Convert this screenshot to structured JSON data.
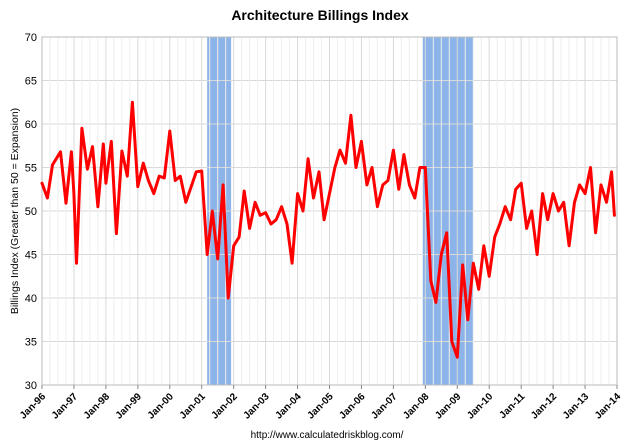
{
  "chart_data": {
    "type": "line",
    "title": "Architecture Billings Index",
    "ylabel": "Billings Index (Greater than 50 = Expansion)",
    "xlabel": "",
    "source": "http://www.calculatedriskblog.com/",
    "ylim": [
      30,
      70
    ],
    "yticks": [
      30,
      35,
      40,
      45,
      50,
      55,
      60,
      65,
      70
    ],
    "xlim": [
      1996.0,
      2014.0
    ],
    "xtick_labels": [
      "Jan-96",
      "Jan-97",
      "Jan-98",
      "Jan-99",
      "Jan-00",
      "Jan-01",
      "Jan-02",
      "Jan-03",
      "Jan-04",
      "Jan-05",
      "Jan-06",
      "Jan-07",
      "Jan-08",
      "Jan-09",
      "Jan-10",
      "Jan-11",
      "Jan-12",
      "Jan-13",
      "Jan-14"
    ],
    "grid": true,
    "recessions": [
      [
        2001.17,
        2001.92
      ],
      [
        2007.92,
        2009.5
      ]
    ],
    "colors": {
      "line": "#ff0000",
      "recession": "#8db4e8",
      "grid": "#d9d9d9"
    },
    "series": [
      {
        "x": [
          1996.0,
          1996.17,
          1996.33,
          1996.58,
          1996.75,
          1996.92,
          1997.0,
          1997.08,
          1997.25,
          1997.42,
          1997.58,
          1997.75,
          1997.92,
          1998.0,
          1998.17,
          1998.33,
          1998.5,
          1998.67,
          1998.83,
          1999.0,
          1999.17,
          1999.33,
          1999.5,
          1999.67,
          1999.83,
          2000.0,
          2000.17,
          2000.33,
          2000.5,
          2000.67,
          2000.83,
          2001.0,
          2001.17,
          2001.33,
          2001.5,
          2001.67,
          2001.83,
          2002.0,
          2002.17,
          2002.33,
          2002.5,
          2002.67,
          2002.83,
          2003.0,
          2003.17,
          2003.33,
          2003.5,
          2003.67,
          2003.83,
          2004.0,
          2004.17,
          2004.33,
          2004.5,
          2004.67,
          2004.83,
          2005.0,
          2005.17,
          2005.33,
          2005.5,
          2005.67,
          2005.83,
          2006.0,
          2006.17,
          2006.33,
          2006.5,
          2006.67,
          2006.83,
          2007.0,
          2007.17,
          2007.33,
          2007.5,
          2007.67,
          2007.83,
          2008.0,
          2008.17,
          2008.33,
          2008.5,
          2008.67,
          2008.83,
          2009.0,
          2009.17,
          2009.33,
          2009.5,
          2009.67,
          2009.83,
          2010.0,
          2010.17,
          2010.33,
          2010.5,
          2010.67,
          2010.83,
          2011.0,
          2011.17,
          2011.33,
          2011.5,
          2011.67,
          2011.83,
          2012.0,
          2012.17,
          2012.33,
          2012.5,
          2012.67,
          2012.83,
          2013.0,
          2013.17,
          2013.33,
          2013.5,
          2013.67,
          2013.83,
          2013.92
        ],
        "y": [
          53.2,
          51.5,
          55.3,
          56.8,
          50.9,
          56.8,
          52.0,
          44.0,
          59.5,
          54.8,
          57.4,
          50.5,
          57.7,
          53.2,
          58.0,
          47.4,
          56.9,
          54.0,
          62.5,
          52.8,
          55.5,
          53.5,
          52.0,
          54.0,
          53.8,
          59.2,
          53.5,
          54.0,
          51.0,
          52.8,
          54.5,
          54.6,
          45.0,
          50.0,
          44.5,
          53.0,
          40.0,
          46.0,
          47.0,
          52.3,
          48.0,
          51.0,
          49.5,
          49.8,
          48.5,
          49.0,
          50.5,
          48.5,
          44.0,
          52.0,
          50.0,
          56.0,
          51.5,
          54.5,
          49.0,
          52.0,
          55.0,
          57.0,
          55.5,
          61.0,
          55.0,
          58.0,
          53.0,
          55.0,
          50.5,
          53.0,
          53.5,
          57.0,
          52.5,
          56.5,
          53.0,
          51.5,
          55.0,
          55.0,
          42.0,
          39.5,
          45.0,
          47.5,
          35.0,
          33.2,
          43.8,
          37.5,
          44.0,
          41.0,
          46.0,
          42.5,
          47.0,
          48.5,
          50.5,
          49.0,
          52.5,
          53.2,
          48.0,
          50.0,
          45.0,
          52.0,
          49.0,
          52.0,
          50.0,
          51.0,
          46.0,
          51.0,
          53.0,
          52.0,
          55.0,
          47.5,
          53.0,
          51.0,
          54.5,
          49.5
        ]
      }
    ]
  }
}
